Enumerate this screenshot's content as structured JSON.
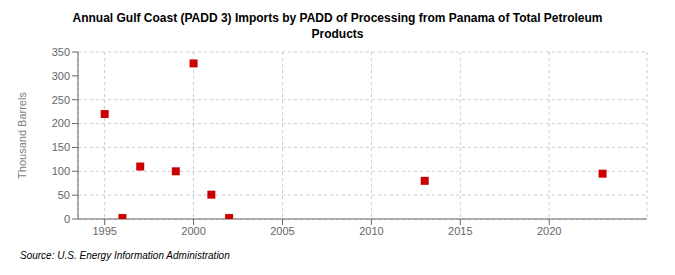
{
  "chart_data": {
    "type": "scatter",
    "title": "Annual Gulf Coast (PADD 3) Imports by PADD of Processing from Panama of Total Petroleum\nProducts",
    "ylabel": "Thousand Barrels",
    "annotations": [
      "Source: U.S. Energy Information Administration"
    ],
    "x": [
      1995,
      1996,
      1997,
      1999,
      2000,
      2001,
      2002,
      2013,
      2023
    ],
    "values": [
      220,
      2,
      110,
      100,
      326,
      51,
      2,
      80,
      95
    ],
    "color": "#cc0000",
    "marker": "square",
    "xlim": [
      1993.5,
      2025.5
    ],
    "xticks": [
      1995,
      2000,
      2005,
      2010,
      2015,
      2020
    ],
    "ylim": [
      0,
      350
    ],
    "yticks": [
      0,
      50,
      100,
      150,
      200,
      250,
      300,
      350
    ],
    "grid": true
  }
}
